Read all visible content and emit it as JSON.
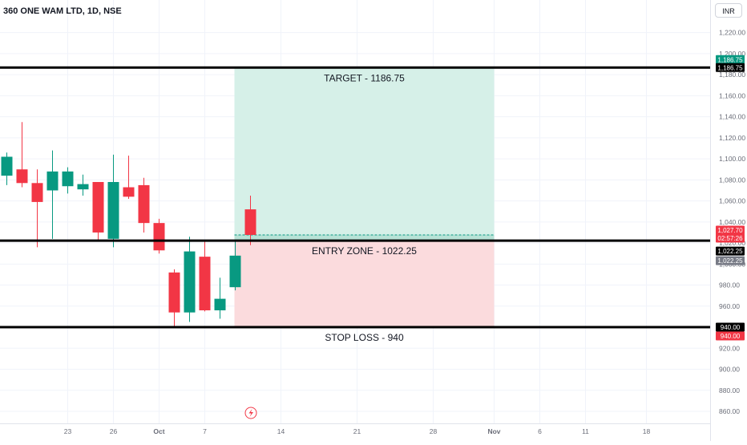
{
  "header": {
    "title": "360 ONE WAM LTD, 1D, NSE",
    "currency": "INR"
  },
  "colors": {
    "up": "#089981",
    "down": "#f23645",
    "target_zone": "#d4efe7",
    "stop_zone": "#fbdbdd",
    "grid": "#f0f3fa",
    "text": "#131722",
    "axis_text": "#6a6d78"
  },
  "chart_data": {
    "type": "candlestick",
    "title": "360 ONE WAM LTD, 1D, NSE",
    "ylim": [
      850,
      1235
    ],
    "y_ticks": [
      860,
      880,
      900,
      920,
      940,
      960,
      980,
      1000,
      1020,
      1040,
      1060,
      1080,
      1100,
      1120,
      1140,
      1160,
      1180,
      1200,
      1220
    ],
    "y_tick_labels": [
      "860.00",
      "880.00",
      "900.00",
      "920.00",
      "940.00",
      "960.00",
      "980.00",
      "1,000.00",
      "1,020.00",
      "1,040.00",
      "1,060.00",
      "1,080.00",
      "1,100.00",
      "1,120.00",
      "1,140.00",
      "1,160.00",
      "1,180.00",
      "1,200.00",
      "1,220.00"
    ],
    "x_ticks": [
      {
        "label": "23",
        "bar": 4,
        "bold": false
      },
      {
        "label": "26",
        "bar": 7,
        "bold": false
      },
      {
        "label": "Oct",
        "bar": 10,
        "bold": true
      },
      {
        "label": "7",
        "bar": 13,
        "bold": false
      },
      {
        "label": "14",
        "bar": 18,
        "bold": false
      },
      {
        "label": "21",
        "bar": 23,
        "bold": false
      },
      {
        "label": "28",
        "bar": 28,
        "bold": false
      },
      {
        "label": "Nov",
        "bar": 32,
        "bold": true
      },
      {
        "label": "6",
        "bar": 35,
        "bold": false
      },
      {
        "label": "11",
        "bar": 38,
        "bold": false
      },
      {
        "label": "18",
        "bar": 42,
        "bold": false
      }
    ],
    "candles": [
      {
        "o": 1084,
        "h": 1106,
        "l": 1075,
        "c": 1102
      },
      {
        "o": 1090,
        "h": 1135,
        "l": 1073,
        "c": 1077
      },
      {
        "o": 1077,
        "h": 1090,
        "l": 1016,
        "c": 1059
      },
      {
        "o": 1070,
        "h": 1108,
        "l": 1024,
        "c": 1088
      },
      {
        "o": 1074,
        "h": 1092,
        "l": 1067,
        "c": 1088
      },
      {
        "o": 1071,
        "h": 1085,
        "l": 1065,
        "c": 1076
      },
      {
        "o": 1078,
        "h": 1078,
        "l": 1023,
        "c": 1030
      },
      {
        "o": 1024,
        "h": 1104,
        "l": 1016,
        "c": 1078
      },
      {
        "o": 1073,
        "h": 1103,
        "l": 1062,
        "c": 1064
      },
      {
        "o": 1075,
        "h": 1082,
        "l": 1030,
        "c": 1039
      },
      {
        "o": 1039,
        "h": 1043,
        "l": 1010,
        "c": 1013
      },
      {
        "o": 992,
        "h": 995,
        "l": 941,
        "c": 954
      },
      {
        "o": 954,
        "h": 1026,
        "l": 945,
        "c": 1012
      },
      {
        "o": 1007,
        "h": 1022,
        "l": 955,
        "c": 956
      },
      {
        "o": 956,
        "h": 987,
        "l": 948,
        "c": 967
      },
      {
        "o": 978,
        "h": 1022,
        "l": 975,
        "c": 1008
      },
      {
        "o": 1052,
        "h": 1065,
        "l": 1018,
        "c": 1027.7
      }
    ],
    "zones": {
      "start_bar": 15,
      "end_bar": 32,
      "target": 1186.75,
      "entry": 1022.25,
      "stop": 940,
      "current": 1027.7,
      "target_label": "TARGET - 1186.75",
      "entry_label": "ENTRY ZONE - 1022.25",
      "stop_label": "STOP LOSS - 940"
    },
    "price_tags": [
      {
        "text": "1,186.75",
        "value": 1186.75,
        "style": "green",
        "offset": -10
      },
      {
        "text": "1,186.75",
        "value": 1186.75,
        "style": "black",
        "offset": 0
      },
      {
        "text": "1,027.70",
        "value": 1027.7,
        "style": "red",
        "offset": -6
      },
      {
        "text": "02:57:26",
        "value": 1027.7,
        "style": "red",
        "offset": 4
      },
      {
        "text": "1,022.25",
        "value": 1022.25,
        "style": "black",
        "offset": 13
      },
      {
        "text": "1,022.25",
        "value": 1022.25,
        "style": "grey",
        "offset": 25
      },
      {
        "text": "940.00",
        "value": 940,
        "style": "black",
        "offset": 0
      },
      {
        "text": "940.00",
        "value": 940,
        "style": "red",
        "offset": 11
      }
    ]
  }
}
